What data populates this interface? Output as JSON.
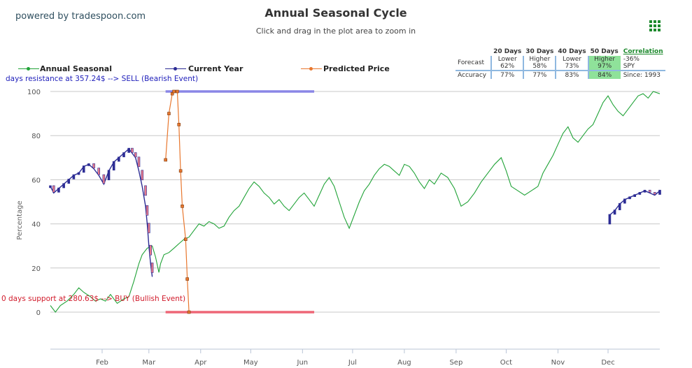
{
  "brand": "powered by tradespoon.com",
  "colors": {
    "seasonal": "#21a338",
    "current": "#2c2c94",
    "predicted": "#e8772e",
    "resistance": "#8a86e6",
    "support": "#ee6677",
    "highlight": "#8fe29a",
    "grid": "#c8c8c8"
  },
  "legend": [
    {
      "name": "Annual Seasonal",
      "color": "#21a338"
    },
    {
      "name": "Current Year",
      "color": "#2c2c94"
    },
    {
      "name": "Predicted Price",
      "color": "#e8772e"
    }
  ],
  "forecast_table": {
    "headers": [
      "20 Days",
      "30 Days",
      "40 Days",
      "50 Days"
    ],
    "forecast_label": "Forecast",
    "forecast": [
      {
        "direction": "Lower",
        "pct": "62%"
      },
      {
        "direction": "Higher",
        "pct": "58%"
      },
      {
        "direction": "Lower",
        "pct": "73%"
      },
      {
        "direction": "Higher",
        "pct": "97%"
      }
    ],
    "accuracy_label": "Accuracy",
    "accuracy": [
      "77%",
      "77%",
      "83%",
      "84%"
    ],
    "correlation_label": "Correlation",
    "correlation_value": "-36%",
    "symbol": "SPY",
    "since": "Since: 1993"
  },
  "annotations": {
    "resistance": "days resistance at 357.24$ --> SELL (Bearish Event)",
    "support": "0 days support at 280.63$ --> BUY (Bullish Event)"
  },
  "chart_data": {
    "type": "line",
    "title": "Annual Seasonal Cycle",
    "subtitle": "Click and drag in the plot area to zoom in",
    "ylabel": "Percentage",
    "xlabel": "",
    "ylim": [
      -15,
      100
    ],
    "yticks": [
      0,
      20,
      40,
      60,
      80,
      100
    ],
    "xlim": [
      0,
      365
    ],
    "month_ticks": [
      {
        "label": "Feb",
        "day": 31
      },
      {
        "label": "Mar",
        "day": 59
      },
      {
        "label": "Apr",
        "day": 90
      },
      {
        "label": "May",
        "day": 120
      },
      {
        "label": "Jun",
        "day": 151
      },
      {
        "label": "Jul",
        "day": 181
      },
      {
        "label": "Aug",
        "day": 212
      },
      {
        "label": "Sep",
        "day": 243
      },
      {
        "label": "Oct",
        "day": 273
      },
      {
        "label": "Nov",
        "day": 304
      },
      {
        "label": "Dec",
        "day": 334
      }
    ],
    "grid": true,
    "legend_position": "top-left",
    "series": [
      {
        "name": "Annual Seasonal",
        "color": "#21a338",
        "points": [
          [
            0,
            3
          ],
          [
            3,
            0
          ],
          [
            6,
            3
          ],
          [
            10,
            5
          ],
          [
            14,
            8
          ],
          [
            17,
            11
          ],
          [
            20,
            9
          ],
          [
            24,
            7
          ],
          [
            27,
            5
          ],
          [
            30,
            6
          ],
          [
            33,
            5
          ],
          [
            36,
            8
          ],
          [
            40,
            4
          ],
          [
            44,
            6
          ],
          [
            47,
            7
          ],
          [
            50,
            14
          ],
          [
            53,
            22
          ],
          [
            55,
            26
          ],
          [
            58,
            29
          ],
          [
            61,
            30
          ],
          [
            63,
            25
          ],
          [
            65,
            18
          ],
          [
            66,
            22
          ],
          [
            68,
            26
          ],
          [
            71,
            27
          ],
          [
            74,
            29
          ],
          [
            77,
            31
          ],
          [
            80,
            33
          ],
          [
            83,
            34
          ],
          [
            86,
            37
          ],
          [
            89,
            40
          ],
          [
            92,
            39
          ],
          [
            95,
            41
          ],
          [
            98,
            40
          ],
          [
            101,
            38
          ],
          [
            104,
            39
          ],
          [
            107,
            43
          ],
          [
            110,
            46
          ],
          [
            113,
            48
          ],
          [
            116,
            52
          ],
          [
            119,
            56
          ],
          [
            122,
            59
          ],
          [
            125,
            57
          ],
          [
            128,
            54
          ],
          [
            131,
            52
          ],
          [
            134,
            49
          ],
          [
            137,
            51
          ],
          [
            140,
            48
          ],
          [
            143,
            46
          ],
          [
            146,
            49
          ],
          [
            149,
            52
          ],
          [
            152,
            54
          ],
          [
            155,
            51
          ],
          [
            158,
            48
          ],
          [
            161,
            53
          ],
          [
            164,
            58
          ],
          [
            167,
            61
          ],
          [
            170,
            57
          ],
          [
            173,
            50
          ],
          [
            176,
            43
          ],
          [
            179,
            38
          ],
          [
            182,
            44
          ],
          [
            185,
            50
          ],
          [
            188,
            55
          ],
          [
            191,
            58
          ],
          [
            194,
            62
          ],
          [
            197,
            65
          ],
          [
            200,
            67
          ],
          [
            203,
            66
          ],
          [
            206,
            64
          ],
          [
            209,
            62
          ],
          [
            212,
            67
          ],
          [
            215,
            66
          ],
          [
            218,
            63
          ],
          [
            221,
            59
          ],
          [
            224,
            56
          ],
          [
            227,
            60
          ],
          [
            230,
            58
          ],
          [
            234,
            63
          ],
          [
            238,
            61
          ],
          [
            242,
            56
          ],
          [
            246,
            48
          ],
          [
            250,
            50
          ],
          [
            254,
            54
          ],
          [
            258,
            59
          ],
          [
            262,
            63
          ],
          [
            266,
            67
          ],
          [
            270,
            70
          ],
          [
            273,
            64
          ],
          [
            276,
            57
          ],
          [
            280,
            55
          ],
          [
            284,
            53
          ],
          [
            288,
            55
          ],
          [
            292,
            57
          ],
          [
            295,
            63
          ],
          [
            298,
            67
          ],
          [
            301,
            71
          ],
          [
            304,
            76
          ],
          [
            307,
            81
          ],
          [
            310,
            84
          ],
          [
            313,
            79
          ],
          [
            316,
            77
          ],
          [
            319,
            80
          ],
          [
            322,
            83
          ],
          [
            325,
            85
          ],
          [
            328,
            90
          ],
          [
            331,
            95
          ],
          [
            334,
            98
          ],
          [
            337,
            94
          ],
          [
            340,
            91
          ],
          [
            343,
            89
          ],
          [
            346,
            92
          ],
          [
            349,
            95
          ],
          [
            352,
            98
          ],
          [
            355,
            99
          ],
          [
            358,
            97
          ],
          [
            361,
            100
          ],
          [
            365,
            99
          ]
        ]
      },
      {
        "name": "Current Year",
        "color": "#2c2c94",
        "points": [
          [
            0,
            57
          ],
          [
            2,
            54
          ],
          [
            5,
            56
          ],
          [
            8,
            58
          ],
          [
            11,
            60
          ],
          [
            14,
            62
          ],
          [
            17,
            63
          ],
          [
            20,
            66
          ],
          [
            23,
            67
          ],
          [
            26,
            65
          ],
          [
            29,
            62
          ],
          [
            32,
            58
          ],
          [
            35,
            64
          ],
          [
            38,
            68
          ],
          [
            41,
            70
          ],
          [
            44,
            72
          ],
          [
            47,
            74
          ],
          [
            49,
            72
          ],
          [
            51,
            70
          ],
          [
            53,
            64
          ],
          [
            55,
            57
          ],
          [
            57,
            48
          ],
          [
            58,
            40
          ],
          [
            59,
            30
          ],
          [
            60,
            22
          ],
          [
            61,
            16
          ],
          [
            335,
            44
          ],
          [
            338,
            46
          ],
          [
            341,
            49
          ],
          [
            344,
            51
          ],
          [
            347,
            52
          ],
          [
            350,
            53
          ],
          [
            353,
            54
          ],
          [
            356,
            55
          ],
          [
            359,
            54
          ],
          [
            362,
            53
          ],
          [
            365,
            55
          ]
        ]
      },
      {
        "name": "Predicted Price",
        "color": "#e8772e",
        "points": [
          [
            69,
            69
          ],
          [
            71,
            90
          ],
          [
            73,
            99
          ],
          [
            74,
            100
          ],
          [
            76,
            100
          ],
          [
            77,
            85
          ],
          [
            78,
            64
          ],
          [
            79,
            48
          ],
          [
            81,
            33
          ],
          [
            82,
            15
          ],
          [
            83,
            0
          ]
        ]
      }
    ],
    "resistance_line": {
      "value": 100,
      "x_from": 69,
      "x_to": 158
    },
    "support_line": {
      "value": 0,
      "x_from": 69,
      "x_to": 158
    }
  }
}
